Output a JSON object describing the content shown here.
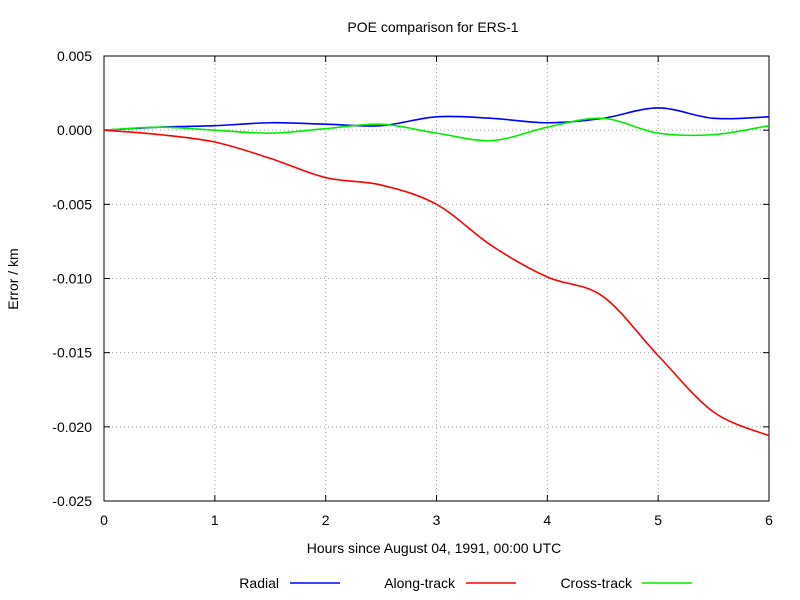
{
  "chart_data": {
    "type": "line",
    "title": "POE comparison for ERS-1",
    "xlabel": "Hours since August 04, 1991, 00:00 UTC",
    "ylabel": "Error / km",
    "xlim": [
      0,
      6
    ],
    "ylim": [
      -0.025,
      0.005
    ],
    "xticks": [
      0,
      1,
      2,
      3,
      4,
      5,
      6
    ],
    "xtick_labels": [
      "0",
      "1",
      "2",
      "3",
      "4",
      "5",
      "6"
    ],
    "yticks": [
      0.005,
      0.0,
      -0.005,
      -0.01,
      -0.015,
      -0.02,
      -0.025
    ],
    "ytick_labels": [
      "0.005",
      "0.000",
      "-0.005",
      "-0.010",
      "-0.015",
      "-0.020",
      "-0.025"
    ],
    "grid": true,
    "legend_position": "bottom",
    "series": [
      {
        "name": "Radial",
        "color": "#0000ff",
        "x": [
          0,
          0.5,
          1.0,
          1.5,
          2.0,
          2.5,
          3.0,
          3.5,
          4.0,
          4.5,
          5.0,
          5.5,
          6.0
        ],
        "y": [
          0.0,
          0.0002,
          0.0003,
          0.0005,
          0.0004,
          0.0003,
          0.0009,
          0.0008,
          0.0005,
          0.0008,
          0.0015,
          0.0008,
          0.0009
        ]
      },
      {
        "name": "Along-track",
        "color": "#ff0000",
        "x": [
          0,
          0.5,
          1.0,
          1.5,
          2.0,
          2.5,
          3.0,
          3.5,
          4.0,
          4.5,
          5.0,
          5.5,
          6.0
        ],
        "y": [
          0.0,
          -0.0003,
          -0.0008,
          -0.0019,
          -0.0032,
          -0.0037,
          -0.005,
          -0.0078,
          -0.0099,
          -0.0112,
          -0.0152,
          -0.019,
          -0.0206
        ]
      },
      {
        "name": "Cross-track",
        "color": "#00ee00",
        "x": [
          0,
          0.5,
          1.0,
          1.5,
          2.0,
          2.5,
          3.0,
          3.5,
          4.0,
          4.5,
          5.0,
          5.5,
          6.0
        ],
        "y": [
          0.0,
          0.0002,
          0.0,
          -0.0002,
          0.0001,
          0.0004,
          -0.0002,
          -0.0007,
          0.0002,
          0.0008,
          -0.0002,
          -0.0003,
          0.0003
        ]
      }
    ]
  }
}
